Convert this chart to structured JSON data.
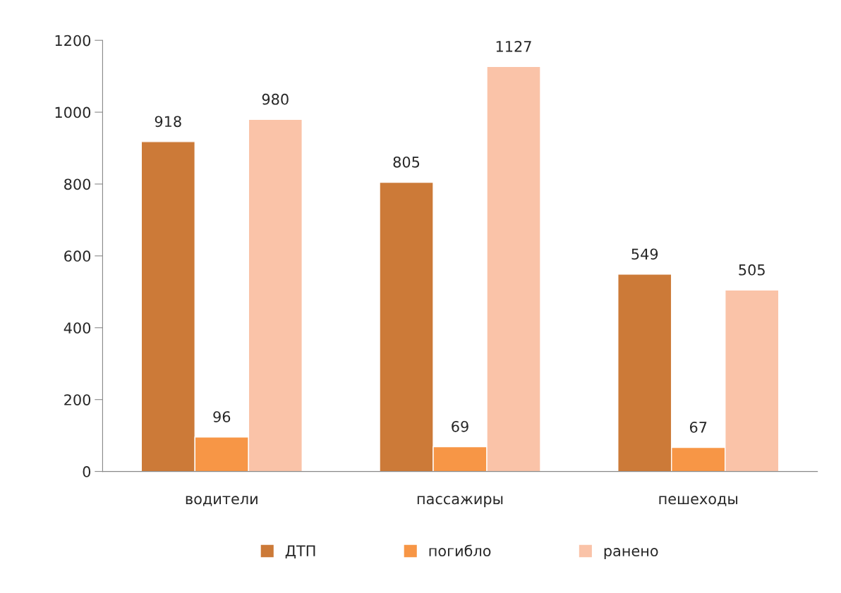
{
  "chart_data": {
    "type": "bar",
    "categories": [
      "водители",
      "пассажиры",
      "пешеходы"
    ],
    "series": [
      {
        "name": "ДТП",
        "color": "#cc7a38",
        "values": [
          918,
          805,
          549
        ]
      },
      {
        "name": "погибло",
        "color": "#f79646",
        "values": [
          96,
          69,
          67
        ]
      },
      {
        "name": "ранено",
        "color": "#fac3a8",
        "values": [
          980,
          1127,
          505
        ]
      }
    ],
    "ylim": [
      0,
      1200
    ],
    "yticks": [
      0,
      200,
      400,
      600,
      800,
      1000,
      1200
    ],
    "data_labels": true,
    "grid": false,
    "legend": "bottom"
  }
}
